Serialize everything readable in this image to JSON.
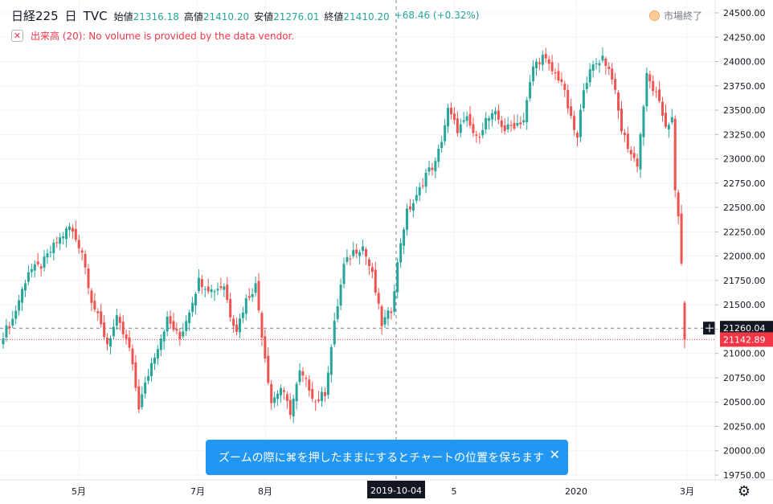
{
  "legend": {
    "symbol": "日経225",
    "interval": "日",
    "source": "TVC",
    "open_label": "始値",
    "open": "21316.18",
    "high_label": "高値",
    "high": "21410.20",
    "low_label": "安値",
    "low": "21276.01",
    "close_label": "終値",
    "close": "21410.20",
    "change": "+68.46 (+0.32%)"
  },
  "status": {
    "label": "市場終了"
  },
  "volume": {
    "label": "出来高 (20): No volume is provided by the data vendor."
  },
  "toast": {
    "message": "ズームの際に⌘を押したままにするとチャートの位置を保ちます",
    "close": "✕"
  },
  "colors": {
    "up": "#26a69a",
    "down": "#ef5350",
    "last_price": "#f23645",
    "crosshair": "#758696",
    "toast": "#2196f3"
  },
  "icons": [
    "close-icon",
    "settings-icon",
    "market-closed-icon"
  ],
  "chart_data": {
    "type": "candlestick",
    "y_range": [
      19750,
      24500
    ],
    "y_ticks": [
      "24500.00",
      "24250.00",
      "24000.00",
      "23750.00",
      "23500.00",
      "23250.00",
      "23000.00",
      "22750.00",
      "22500.00",
      "22250.00",
      "22000.00",
      "21750.00",
      "21500.00",
      "21250.00",
      "21000.00",
      "20750.00",
      "20500.00",
      "20250.00",
      "20000.00",
      "19750.00"
    ],
    "x_ticks": [
      "5月",
      "7月",
      "8月",
      "5",
      "2020",
      "3月"
    ],
    "crosshair": {
      "x_label": "2019-10-04",
      "y_label": "21260.04",
      "y_value": 21260.04
    },
    "last_price": {
      "label": "21142.89",
      "value": 21142.89
    },
    "anchors": [
      {
        "i": 0,
        "v": 21200
      },
      {
        "i": 3,
        "v": 21350
      },
      {
        "i": 8,
        "v": 21850
      },
      {
        "i": 12,
        "v": 21900
      },
      {
        "i": 16,
        "v": 22100
      },
      {
        "i": 21,
        "v": 22300
      },
      {
        "i": 25,
        "v": 22050
      },
      {
        "i": 28,
        "v": 21550
      },
      {
        "i": 33,
        "v": 21100
      },
      {
        "i": 36,
        "v": 21350
      },
      {
        "i": 40,
        "v": 21050
      },
      {
        "i": 43,
        "v": 20450
      },
      {
        "i": 47,
        "v": 20900
      },
      {
        "i": 52,
        "v": 21350
      },
      {
        "i": 56,
        "v": 21150
      },
      {
        "i": 59,
        "v": 21450
      },
      {
        "i": 62,
        "v": 21750
      },
      {
        "i": 66,
        "v": 21650
      },
      {
        "i": 70,
        "v": 21700
      },
      {
        "i": 72,
        "v": 21400
      },
      {
        "i": 74,
        "v": 21250
      },
      {
        "i": 77,
        "v": 21550
      },
      {
        "i": 80,
        "v": 21700
      },
      {
        "i": 82,
        "v": 21200
      },
      {
        "i": 85,
        "v": 20500
      },
      {
        "i": 88,
        "v": 20650
      },
      {
        "i": 91,
        "v": 20400
      },
      {
        "i": 94,
        "v": 20800
      },
      {
        "i": 97,
        "v": 20650
      },
      {
        "i": 99,
        "v": 20500
      },
      {
        "i": 102,
        "v": 20600
      },
      {
        "i": 105,
        "v": 21300
      },
      {
        "i": 108,
        "v": 21900
      },
      {
        "i": 111,
        "v": 22050
      },
      {
        "i": 114,
        "v": 22100
      },
      {
        "i": 117,
        "v": 21800
      },
      {
        "i": 120,
        "v": 21300
      },
      {
        "i": 123,
        "v": 21450
      },
      {
        "i": 126,
        "v": 22150
      },
      {
        "i": 128,
        "v": 22450
      },
      {
        "i": 131,
        "v": 22600
      },
      {
        "i": 134,
        "v": 22850
      },
      {
        "i": 137,
        "v": 22950
      },
      {
        "i": 139,
        "v": 23200
      },
      {
        "i": 141,
        "v": 23500
      },
      {
        "i": 144,
        "v": 23300
      },
      {
        "i": 147,
        "v": 23400
      },
      {
        "i": 150,
        "v": 23200
      },
      {
        "i": 153,
        "v": 23400
      },
      {
        "i": 156,
        "v": 23450
      },
      {
        "i": 159,
        "v": 23300
      },
      {
        "i": 162,
        "v": 23350
      },
      {
        "i": 165,
        "v": 23400
      },
      {
        "i": 168,
        "v": 23950
      },
      {
        "i": 171,
        "v": 24050
      },
      {
        "i": 174,
        "v": 23900
      },
      {
        "i": 177,
        "v": 23800
      },
      {
        "i": 180,
        "v": 23400
      },
      {
        "i": 182,
        "v": 23200
      },
      {
        "i": 184,
        "v": 23750
      },
      {
        "i": 187,
        "v": 23950
      },
      {
        "i": 190,
        "v": 24050
      },
      {
        "i": 193,
        "v": 23850
      },
      {
        "i": 196,
        "v": 23300
      },
      {
        "i": 199,
        "v": 23050
      },
      {
        "i": 201,
        "v": 22950
      },
      {
        "i": 204,
        "v": 23850
      },
      {
        "i": 207,
        "v": 23650
      },
      {
        "i": 210,
        "v": 23350
      },
      {
        "i": 212,
        "v": 23400
      },
      {
        "i": 213,
        "v": 22650
      },
      {
        "i": 214,
        "v": 22400
      },
      {
        "i": 215,
        "v": 21950
      },
      {
        "i": 216,
        "v": 21142.89
      }
    ],
    "n_bars": 217
  }
}
